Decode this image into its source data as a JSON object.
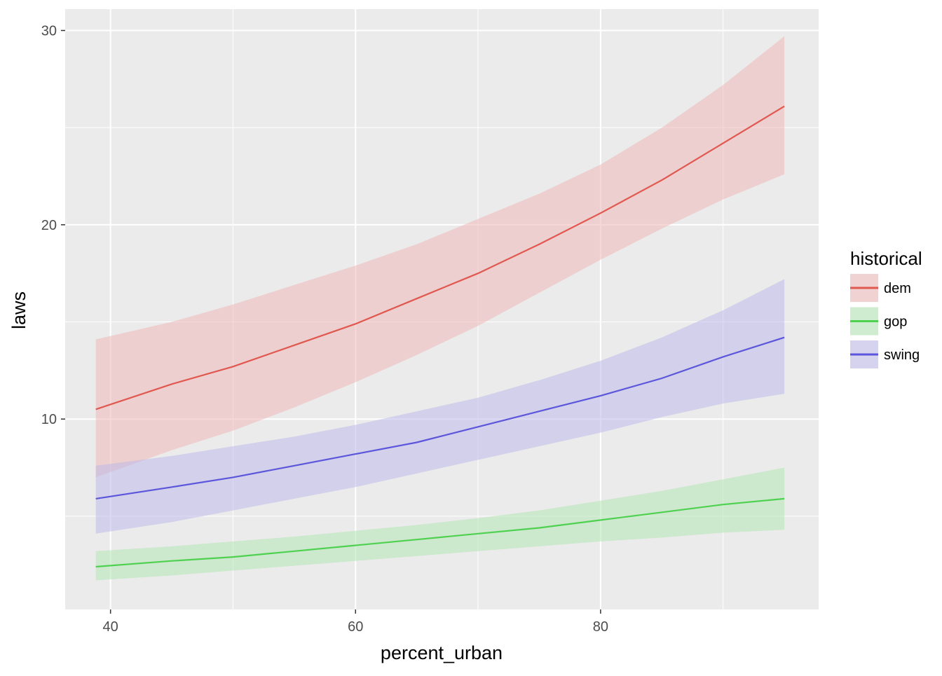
{
  "chart_data": {
    "type": "line",
    "xlabel": "percent_urban",
    "ylabel": "laws",
    "xlim": [
      36.3,
      97.8
    ],
    "ylim": [
      0.2,
      31.1
    ],
    "x_ticks_major": [
      40,
      60,
      80
    ],
    "x_ticks_minor": [
      50,
      70,
      90
    ],
    "y_ticks_major": [
      10,
      20,
      30
    ],
    "y_ticks_minor": [
      5,
      15,
      25
    ],
    "grid": true,
    "legend": {
      "title": "historical",
      "position": "right",
      "entries": [
        "dem",
        "gop",
        "swing"
      ]
    },
    "x": [
      38.8,
      45,
      50,
      55,
      60,
      65,
      70,
      75,
      80,
      85,
      90,
      95
    ],
    "series": [
      {
        "name": "dem",
        "color": "#E0584F",
        "fill": "#F0B8B8",
        "values": [
          10.5,
          11.8,
          12.7,
          13.8,
          14.9,
          16.2,
          17.5,
          19.0,
          20.6,
          22.3,
          24.2,
          26.1
        ],
        "lower": [
          7.0,
          8.4,
          9.4,
          10.6,
          11.9,
          13.3,
          14.8,
          16.5,
          18.2,
          19.8,
          21.3,
          22.6
        ],
        "upper": [
          14.1,
          15.0,
          15.9,
          16.9,
          17.9,
          19.0,
          20.3,
          21.6,
          23.1,
          25.0,
          27.2,
          29.7
        ]
      },
      {
        "name": "gop",
        "color": "#4FD150",
        "fill": "#B2E5B4",
        "values": [
          2.4,
          2.7,
          2.9,
          3.2,
          3.5,
          3.8,
          4.1,
          4.4,
          4.8,
          5.2,
          5.6,
          5.9
        ],
        "lower": [
          1.7,
          1.95,
          2.2,
          2.45,
          2.7,
          2.95,
          3.2,
          3.45,
          3.7,
          3.9,
          4.15,
          4.3
        ],
        "upper": [
          3.2,
          3.45,
          3.7,
          3.95,
          4.25,
          4.55,
          4.9,
          5.3,
          5.8,
          6.3,
          6.9,
          7.5
        ]
      },
      {
        "name": "swing",
        "color": "#5B56DB",
        "fill": "#BDB9EA",
        "values": [
          5.9,
          6.5,
          7.0,
          7.6,
          8.2,
          8.8,
          9.6,
          10.4,
          11.2,
          12.1,
          13.2,
          14.2
        ],
        "lower": [
          4.1,
          4.7,
          5.3,
          5.9,
          6.5,
          7.2,
          7.9,
          8.6,
          9.3,
          10.1,
          10.8,
          11.3
        ],
        "upper": [
          7.6,
          8.1,
          8.6,
          9.1,
          9.7,
          10.4,
          11.1,
          12.0,
          13.0,
          14.2,
          15.6,
          17.2
        ]
      }
    ]
  }
}
